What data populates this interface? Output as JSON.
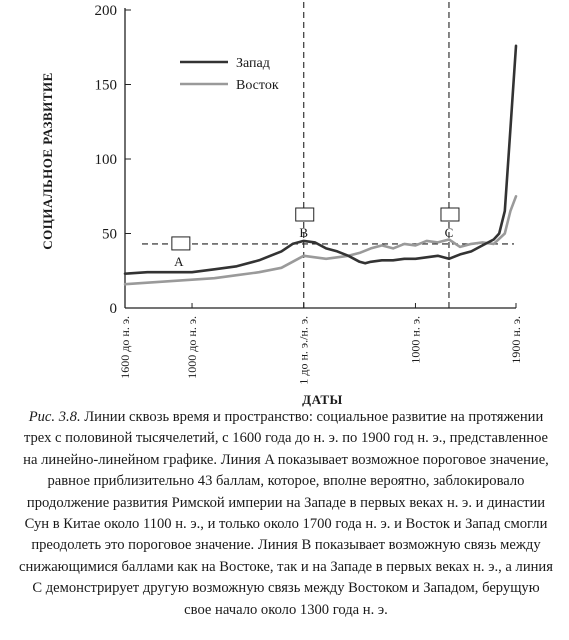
{
  "chart_data": {
    "type": "line",
    "ylabel": "СОЦИАЛЬНОЕ РАЗВИТИЕ",
    "xlabel": "ДАТЫ",
    "ylim": [
      0,
      200
    ],
    "xlim": [
      -1600,
      1900
    ],
    "y_ticks": [
      0,
      50,
      100,
      150,
      200
    ],
    "y_tick_labels": [
      "0",
      "50",
      "100",
      "150",
      "200"
    ],
    "x_ticks": [
      -1600,
      -1000,
      0,
      1000,
      1900
    ],
    "x_tick_labels": [
      "1600 до н. э.",
      "1000 до н. э.",
      "1 до н. э./н. э.",
      "1000 н. э.",
      "1900 н. э."
    ],
    "legend_placement": "top-left",
    "series": [
      {
        "name": "Запад",
        "color": "#333333",
        "x": [
          -1600,
          -1400,
          -1200,
          -1000,
          -800,
          -600,
          -400,
          -200,
          -100,
          0,
          100,
          200,
          300,
          400,
          500,
          550,
          600,
          700,
          800,
          900,
          1000,
          1100,
          1200,
          1300,
          1400,
          1500,
          1600,
          1700,
          1750,
          1800,
          1850,
          1900
        ],
        "values": [
          23,
          24,
          24,
          24,
          26,
          28,
          32,
          38,
          43,
          45,
          44,
          40,
          38,
          35,
          31,
          30,
          31,
          32,
          32,
          33,
          33,
          34,
          35,
          33,
          36,
          38,
          42,
          46,
          50,
          65,
          120,
          176
        ]
      },
      {
        "name": "Восток",
        "color": "#9a9a9a",
        "x": [
          -1600,
          -1400,
          -1200,
          -1000,
          -800,
          -600,
          -400,
          -200,
          -100,
          0,
          100,
          200,
          300,
          400,
          500,
          600,
          700,
          800,
          900,
          1000,
          1100,
          1200,
          1300,
          1400,
          1500,
          1600,
          1700,
          1800,
          1850,
          1900
        ],
        "values": [
          16,
          17,
          18,
          19,
          20,
          22,
          24,
          27,
          31,
          35,
          34,
          33,
          34,
          35,
          37,
          40,
          42,
          40,
          43,
          42,
          45,
          44,
          46,
          41,
          43,
          44,
          43,
          50,
          65,
          75
        ]
      }
    ],
    "threshold_line": {
      "label": "A",
      "y": 43
    },
    "vertical_lines": [
      {
        "label": "B",
        "x": 0
      },
      {
        "label": "C",
        "x": 1300
      }
    ]
  },
  "caption": {
    "fig_label": "Рис. 3.8.",
    "text": "Линии сквозь время и пространство: социальное развитие на протяжении трех с половиной тысячелетий, с 1600 года до н. э. по 1900 год н. э., представленное на линейно-линейном графике. Линия A показывает возможное пороговое значение, равное приблизительно 43 баллам, которое, вполне вероятно, заблокировало продолжение развития Римской империи на Западе в первых веках н. э. и династии Сун в Китае около 1100 н. э., и только около 1700 года н. э. и Восток и Запад смогли преодолеть это пороговое значение. Линия B показывает возможную связь между снижающимися баллами как на Востоке, так и на Западе в первых веках н. э., а линия C демонстрирует другую возможную связь между Востоком и Западом, берущую свое начало около 1300 года н. э."
  }
}
